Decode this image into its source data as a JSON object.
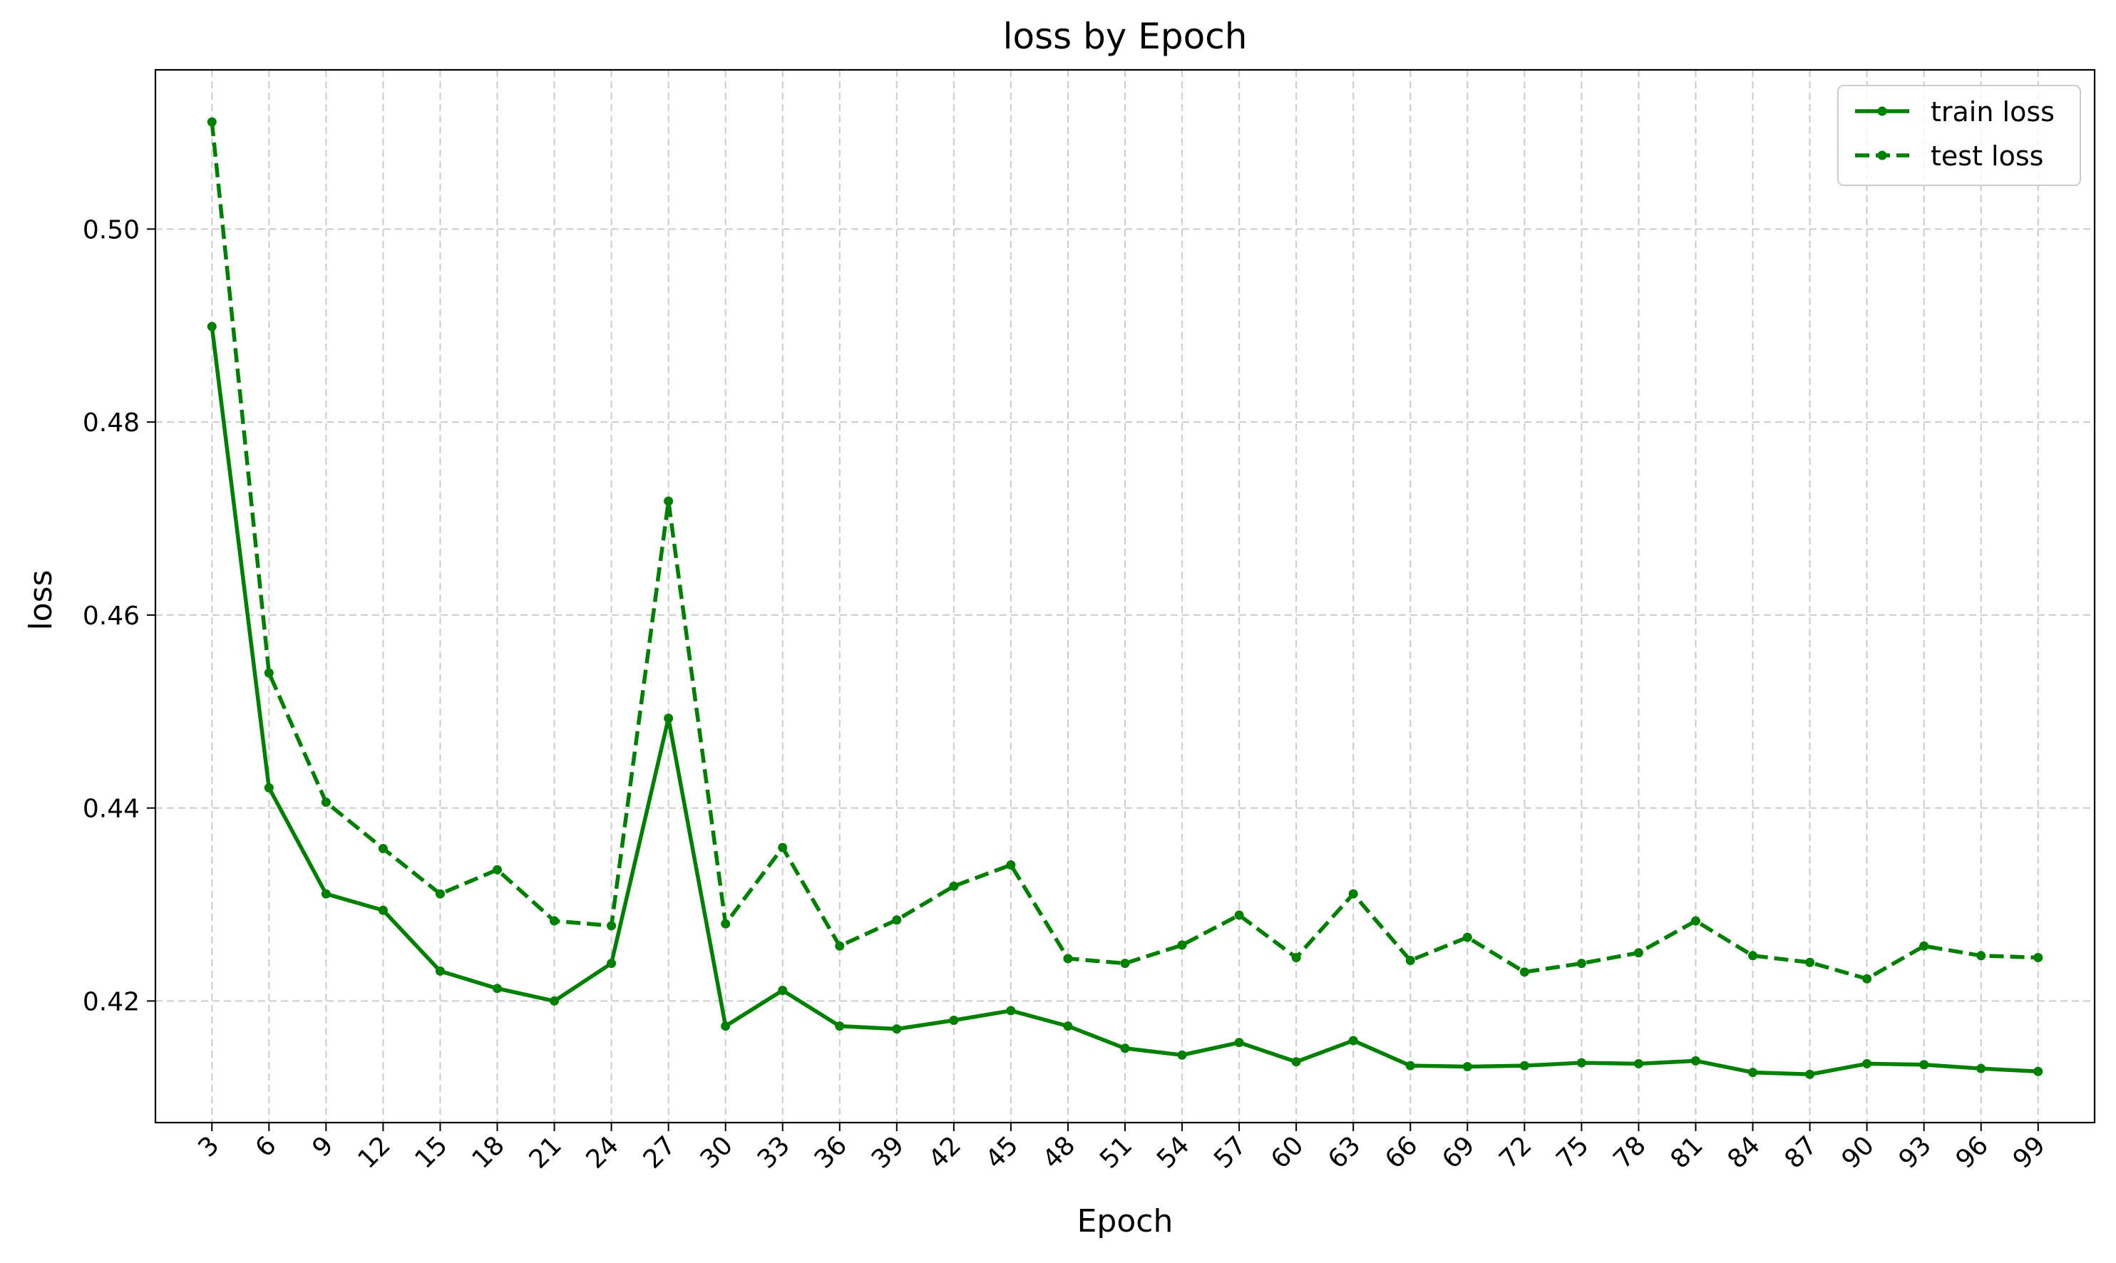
{
  "chart_data": {
    "type": "line",
    "title": "loss by Epoch",
    "xlabel": "Epoch",
    "ylabel": "loss",
    "x": [
      3,
      6,
      9,
      12,
      15,
      18,
      21,
      24,
      27,
      30,
      33,
      36,
      39,
      42,
      45,
      48,
      51,
      54,
      57,
      60,
      63,
      66,
      69,
      72,
      75,
      78,
      81,
      84,
      87,
      90,
      93,
      96,
      99
    ],
    "xticks": [
      "3",
      "6",
      "9",
      "12",
      "15",
      "18",
      "21",
      "24",
      "27",
      "30",
      "33",
      "36",
      "39",
      "42",
      "45",
      "48",
      "51",
      "54",
      "57",
      "60",
      "63",
      "66",
      "69",
      "72",
      "75",
      "78",
      "81",
      "84",
      "87",
      "90",
      "93",
      "96",
      "99"
    ],
    "yticks": [
      "0.42",
      "0.44",
      "0.46",
      "0.48",
      "0.50"
    ],
    "ytick_values": [
      0.42,
      0.44,
      0.46,
      0.48,
      0.5
    ],
    "xlim": [
      0.03,
      101.97
    ],
    "ylim": [
      0.4074,
      0.5165
    ],
    "grid": true,
    "legend_position": "top-right",
    "series": [
      {
        "name": "train loss",
        "style": "solid",
        "color": "#008000",
        "values": [
          0.4899,
          0.4421,
          0.4311,
          0.4294,
          0.4231,
          0.4213,
          0.42,
          0.4239,
          0.4493,
          0.4174,
          0.4211,
          0.4174,
          0.4171,
          0.418,
          0.419,
          0.4174,
          0.4151,
          0.4144,
          0.4157,
          0.4137,
          0.4159,
          0.4133,
          0.4132,
          0.4133,
          0.4136,
          0.4135,
          0.4138,
          0.4126,
          0.4124,
          0.4135,
          0.4134,
          0.413,
          0.4127
        ]
      },
      {
        "name": "test loss",
        "style": "dashed",
        "color": "#008000",
        "values": [
          0.5111,
          0.454,
          0.4406,
          0.4358,
          0.4311,
          0.4336,
          0.4283,
          0.4278,
          0.4718,
          0.428,
          0.4359,
          0.4257,
          0.4284,
          0.4319,
          0.4341,
          0.4244,
          0.4239,
          0.4258,
          0.4289,
          0.4245,
          0.4311,
          0.4242,
          0.4266,
          0.423,
          0.4239,
          0.425,
          0.4283,
          0.4247,
          0.424,
          0.4223,
          0.4257,
          0.4247,
          0.4245
        ]
      }
    ]
  }
}
